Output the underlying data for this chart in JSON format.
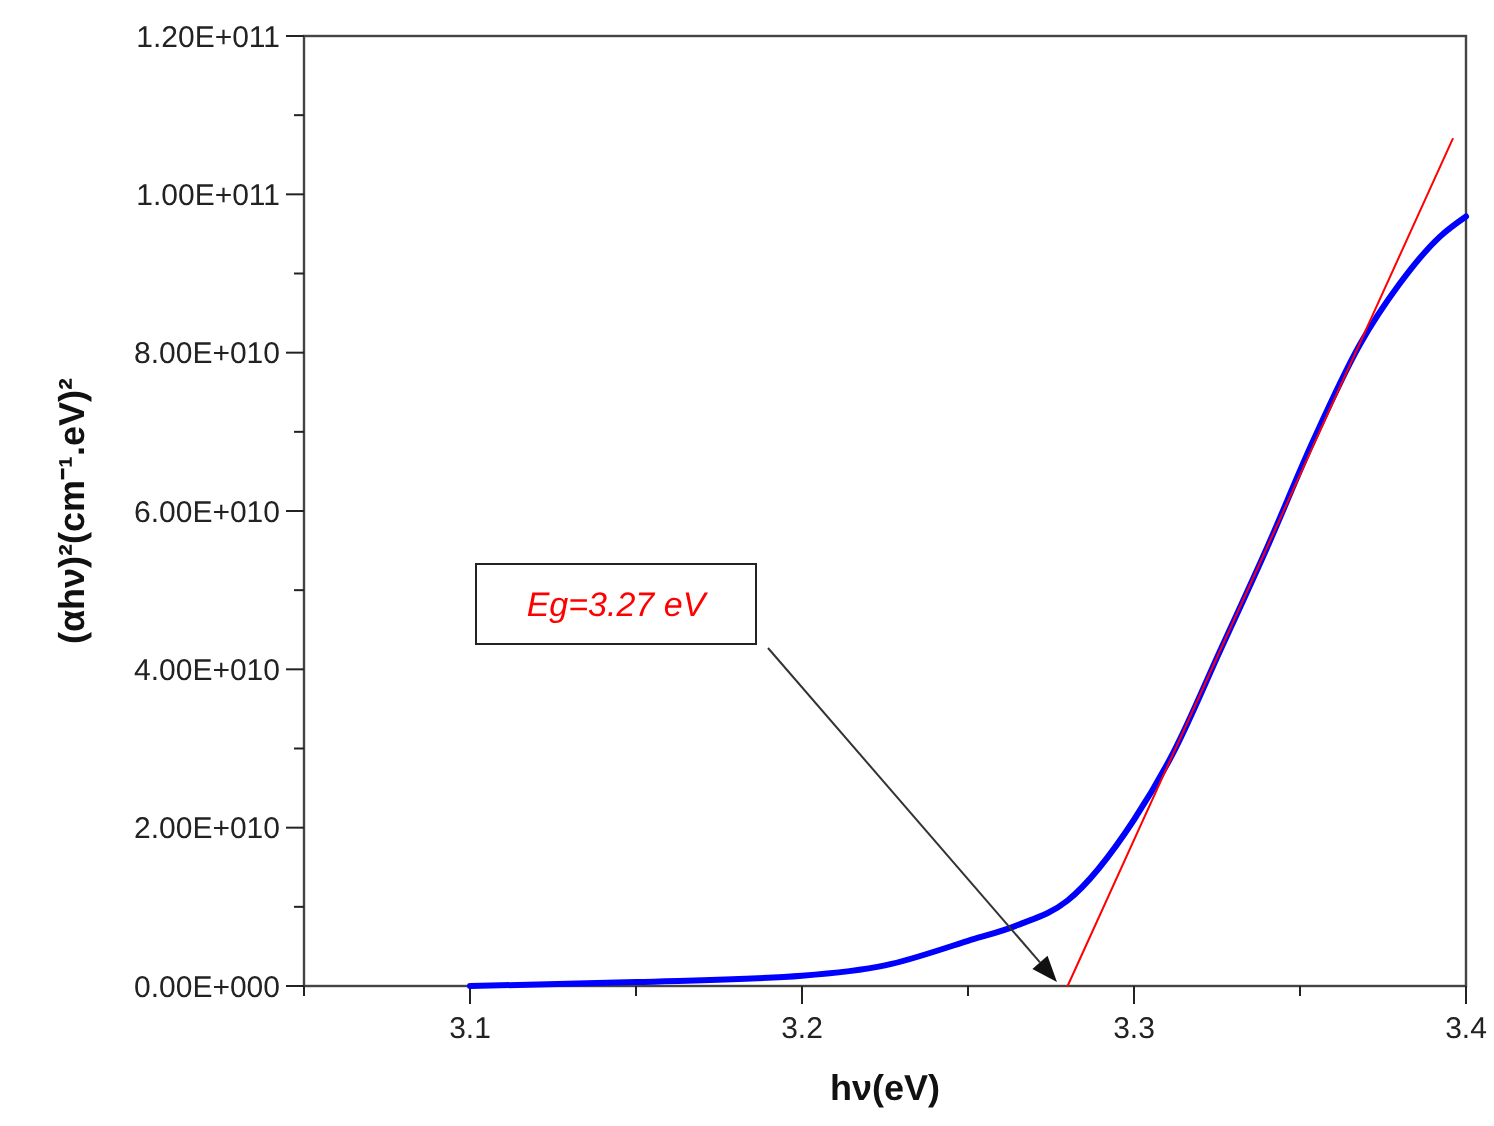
{
  "chart_data": {
    "type": "line",
    "xlabel": "hν(eV)",
    "ylabel": "(αhν)²(cm⁻¹.eV)²",
    "xlim": [
      3.05,
      3.4
    ],
    "xticks": [
      {
        "value": 3.05,
        "label": null
      },
      3.1,
      {
        "value": 3.15,
        "label": null
      },
      3.2,
      {
        "value": 3.25,
        "label": null
      },
      3.3,
      {
        "value": 3.35,
        "label": null
      },
      3.4
    ],
    "ylim": [
      0,
      120000000000
    ],
    "yticks": [
      {
        "value": 0,
        "label": "0.00E+000"
      },
      {
        "value": 10000000000,
        "label": null
      },
      {
        "value": 20000000000,
        "label": "2.00E+010"
      },
      {
        "value": 30000000000,
        "label": null
      },
      {
        "value": 40000000000,
        "label": "4.00E+010"
      },
      {
        "value": 50000000000,
        "label": null
      },
      {
        "value": 60000000000,
        "label": "6.00E+010"
      },
      {
        "value": 70000000000,
        "label": null
      },
      {
        "value": 80000000000,
        "label": "8.00E+010"
      },
      {
        "value": 90000000000,
        "label": null
      },
      {
        "value": 100000000000,
        "label": "1.00E+011"
      },
      {
        "value": 110000000000,
        "label": null
      },
      {
        "value": 120000000000,
        "label": "1.20E+011"
      }
    ],
    "grid": false,
    "series": [
      {
        "color": "#0000ff",
        "x": [
          3.1,
          3.15,
          3.2,
          3.225,
          3.25,
          3.265,
          3.28,
          3.3,
          3.312,
          3.326,
          3.34,
          3.354,
          3.368,
          3.38,
          3.392,
          3.4
        ],
        "values": [
          0,
          500000000,
          1300000000,
          2600000000,
          5700000000,
          7700000000,
          10800000000,
          21000000000,
          29600000000,
          42400000000,
          55300000000,
          68900000000,
          81000000000,
          88700000000,
          94600000000,
          97200000000
        ]
      },
      {
        "color": "#ff0000",
        "x": [
          3.28,
          3.396
        ],
        "values": [
          0,
          107000000000
        ]
      }
    ],
    "annotations": [
      "Eg=3.27 eV"
    ]
  }
}
